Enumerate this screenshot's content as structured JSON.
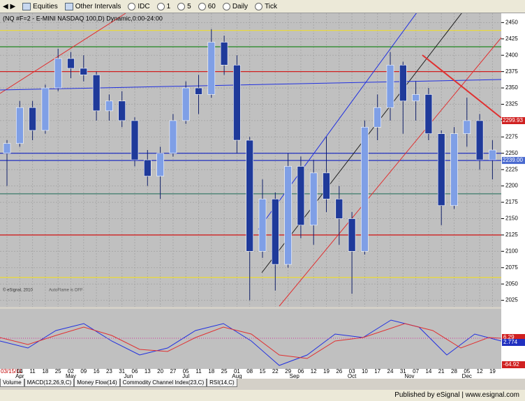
{
  "toolbar": [
    "Equities",
    "Other Intervals",
    "IDC",
    "1",
    "5",
    "60",
    "Daily",
    "Tick"
  ],
  "tabs": [
    "Volume",
    "MACD(12,26,9,C)",
    "Money Flow(14)",
    "Commodity Channel Index(23,C)",
    "RSI(14,C)"
  ],
  "status": "Published by eSignal | www.esignal.com",
  "chart_data": {
    "type": "candlestick",
    "title": "(NQ #F=2 - E-MINI NASDAQ 100,D) Dynamic,0:00-24:00",
    "notes": [
      "© eSignal, 2010",
      "AutoFlame is OFF"
    ],
    "categories": [
      "03/15/11",
      "04",
      "11",
      "18",
      "25",
      "02",
      "09",
      "16",
      "23",
      "31",
      "06",
      "13",
      "20",
      "27",
      "05",
      "11",
      "18",
      "25",
      "01",
      "08",
      "15",
      "22",
      "29",
      "06",
      "12",
      "19",
      "26",
      "03",
      "10",
      "17",
      "24",
      "31",
      "07",
      "14",
      "21",
      "28",
      "05",
      "12",
      "19"
    ],
    "months": [
      "Apr",
      "May",
      "Jun",
      "Jul",
      "Aug",
      "Sep",
      "Oct",
      "Nov",
      "Dec"
    ],
    "open": [
      2250,
      2265,
      2320,
      2285,
      2350,
      2395,
      2380,
      2370,
      2315,
      2330,
      2300,
      2240,
      2215,
      2250,
      2300,
      2350,
      2340,
      2420,
      2385,
      2270,
      2100,
      2180,
      2080,
      2230,
      2140,
      2220,
      2180,
      2150,
      2100,
      2290,
      2320,
      2385,
      2330,
      2340,
      2280,
      2170,
      2280,
      2300,
      2240
    ],
    "high": [
      2270,
      2330,
      2330,
      2355,
      2410,
      2405,
      2400,
      2375,
      2340,
      2345,
      2305,
      2255,
      2260,
      2310,
      2360,
      2370,
      2440,
      2430,
      2400,
      2275,
      2210,
      2190,
      2250,
      2245,
      2240,
      2275,
      2200,
      2160,
      2300,
      2340,
      2405,
      2390,
      2360,
      2350,
      2285,
      2290,
      2335,
      2310,
      2270
    ],
    "low": [
      2200,
      2260,
      2270,
      2280,
      2345,
      2365,
      2360,
      2300,
      2300,
      2290,
      2230,
      2200,
      2180,
      2245,
      2295,
      2310,
      2335,
      2370,
      2250,
      2025,
      2090,
      2040,
      2075,
      2120,
      2110,
      2160,
      2110,
      2035,
      2095,
      2270,
      2300,
      2280,
      2300,
      2270,
      2140,
      2165,
      2260,
      2225,
      2210
    ],
    "close": [
      2265,
      2320,
      2285,
      2350,
      2395,
      2380,
      2370,
      2315,
      2330,
      2300,
      2240,
      2215,
      2250,
      2300,
      2350,
      2340,
      2420,
      2385,
      2270,
      2100,
      2180,
      2080,
      2230,
      2140,
      2220,
      2180,
      2150,
      2100,
      2290,
      2320,
      2385,
      2330,
      2340,
      2280,
      2170,
      2280,
      2300,
      2240,
      2255
    ],
    "up_color": "#7f9fe6",
    "down_color": "#1f3a9a",
    "ylim": [
      2015,
      2460
    ],
    "yticks": [
      2025,
      2050,
      2075,
      2100,
      2125,
      2150,
      2175,
      2200,
      2225,
      2250,
      2275,
      2300,
      2325,
      2350,
      2375,
      2400,
      2425,
      2450
    ],
    "grid": true,
    "levels": [
      {
        "value": 2438,
        "color": "#e8d840"
      },
      {
        "value": 2413,
        "color": "#2e8b2e"
      },
      {
        "value": 2375,
        "color": "#d02020"
      },
      {
        "value": 2250,
        "color": "#2030c0"
      },
      {
        "value": 2239,
        "color": "#2030c0"
      },
      {
        "value": 2188,
        "color": "#3a7a6a"
      },
      {
        "value": 2125,
        "color": "#d02020"
      },
      {
        "value": 2060,
        "color": "#e8d840"
      }
    ],
    "price_markers": [
      {
        "value": 2299.93,
        "label": "2299.93",
        "color": "#d02020"
      },
      {
        "value": 2239,
        "label": "2239.00",
        "color": "#4a6ad0"
      }
    ],
    "indicator_labels": [
      "6.29",
      "2.774",
      "-64.92"
    ]
  }
}
